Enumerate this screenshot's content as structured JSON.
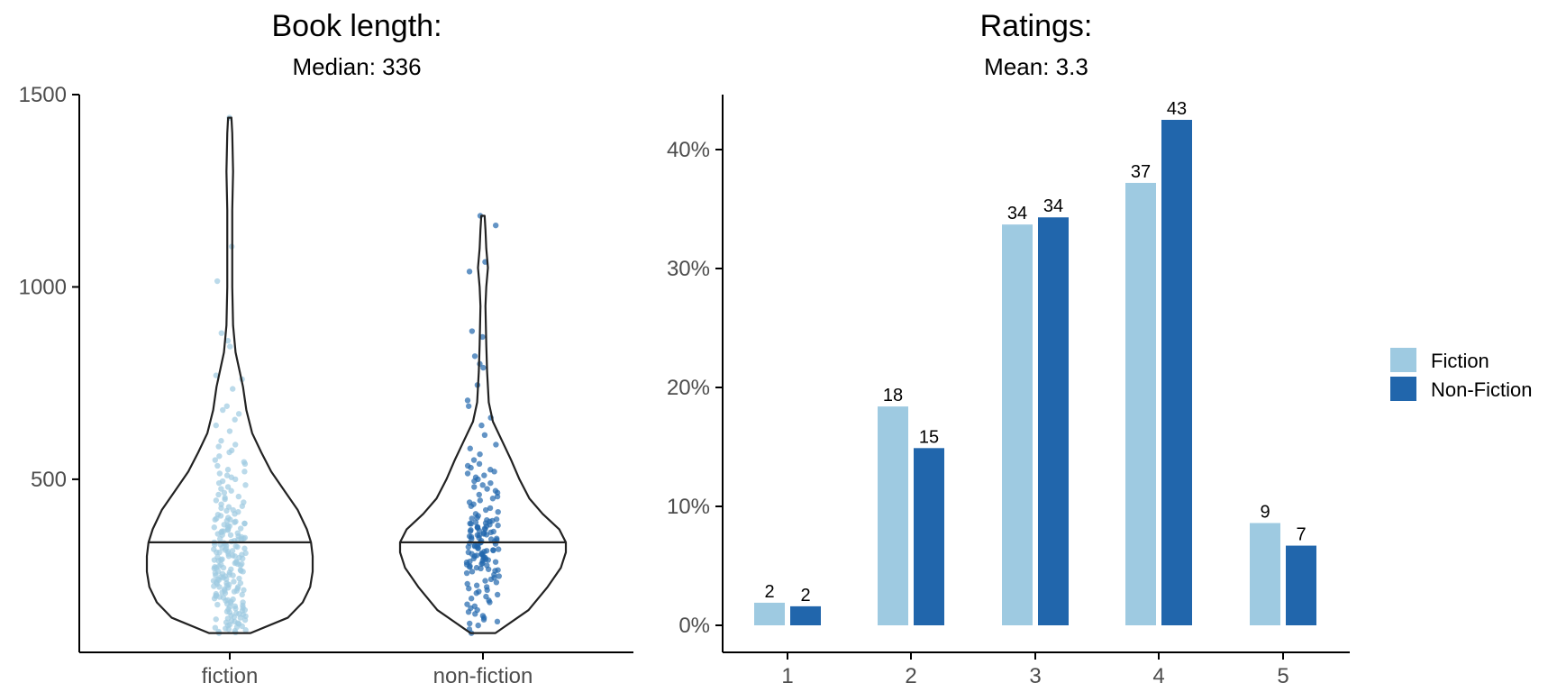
{
  "chart_data": [
    {
      "type": "violin",
      "title": "Book length:",
      "subtitle": "Median: 336",
      "categories": [
        "fiction",
        "non-fiction"
      ],
      "ylim": [
        50,
        1500
      ],
      "yticks": [
        "500",
        "1000",
        "1500"
      ],
      "ytick_values": [
        500,
        1000,
        1500
      ],
      "grid": false,
      "violins": [
        {
          "name": "fiction",
          "median": 336,
          "min": 100,
          "max": 1440,
          "color": "#9ecae1",
          "profile": [
            [
              100,
              0.25
            ],
            [
              140,
              0.7
            ],
            [
              180,
              0.88
            ],
            [
              220,
              0.97
            ],
            [
              260,
              1.0
            ],
            [
              300,
              1.0
            ],
            [
              336,
              0.98
            ],
            [
              370,
              0.93
            ],
            [
              420,
              0.82
            ],
            [
              470,
              0.66
            ],
            [
              520,
              0.5
            ],
            [
              570,
              0.38
            ],
            [
              620,
              0.27
            ],
            [
              680,
              0.2
            ],
            [
              740,
              0.16
            ],
            [
              780,
              0.12
            ],
            [
              830,
              0.07
            ],
            [
              900,
              0.04
            ],
            [
              1000,
              0.03
            ],
            [
              1100,
              0.03
            ],
            [
              1200,
              0.03
            ],
            [
              1300,
              0.04
            ],
            [
              1400,
              0.03
            ],
            [
              1440,
              0.02
            ]
          ]
        },
        {
          "name": "non-fiction",
          "median": 336,
          "min": 100,
          "max": 1185,
          "color": "#2166ac",
          "profile": [
            [
              100,
              0.15
            ],
            [
              160,
              0.55
            ],
            [
              220,
              0.78
            ],
            [
              270,
              0.94
            ],
            [
              310,
              1.0
            ],
            [
              336,
              1.0
            ],
            [
              370,
              0.92
            ],
            [
              410,
              0.72
            ],
            [
              450,
              0.56
            ],
            [
              500,
              0.44
            ],
            [
              550,
              0.34
            ],
            [
              600,
              0.23
            ],
            [
              650,
              0.12
            ],
            [
              700,
              0.07
            ],
            [
              780,
              0.05
            ],
            [
              850,
              0.04
            ],
            [
              950,
              0.03
            ],
            [
              1000,
              0.04
            ],
            [
              1050,
              0.06
            ],
            [
              1100,
              0.04
            ],
            [
              1150,
              0.03
            ],
            [
              1185,
              0.02
            ]
          ]
        }
      ],
      "points": {
        "fiction": [
          1440,
          1105,
          1015,
          880,
          860,
          845,
          770,
          760,
          735,
          690,
          680,
          670,
          655,
          640,
          625,
          600,
          590,
          585,
          575,
          570,
          560,
          550,
          545,
          540,
          535,
          525,
          520,
          515,
          510,
          505,
          500,
          495,
          490,
          485,
          480,
          475,
          470,
          465,
          460,
          455,
          452,
          448,
          445,
          440,
          435,
          430,
          428,
          425,
          420,
          418,
          415,
          410,
          408,
          405,
          400,
          398,
          395,
          392,
          390,
          388,
          385,
          382,
          380,
          378,
          375,
          372,
          370,
          368,
          365,
          362,
          360,
          358,
          355,
          352,
          350,
          348,
          346,
          344,
          342,
          340,
          338,
          336,
          334,
          332,
          330,
          328,
          326,
          324,
          322,
          320,
          318,
          316,
          314,
          312,
          310,
          308,
          306,
          304,
          302,
          300,
          298,
          296,
          294,
          292,
          290,
          288,
          286,
          284,
          282,
          280,
          278,
          276,
          274,
          272,
          270,
          268,
          266,
          264,
          262,
          260,
          258,
          256,
          254,
          252,
          250,
          248,
          246,
          244,
          242,
          240,
          238,
          236,
          234,
          232,
          230,
          228,
          226,
          224,
          222,
          220,
          218,
          216,
          214,
          212,
          210,
          208,
          206,
          204,
          202,
          200,
          198,
          196,
          194,
          192,
          190,
          188,
          186,
          184,
          182,
          180,
          178,
          176,
          174,
          172,
          170,
          168,
          166,
          164,
          162,
          160,
          158,
          156,
          154,
          152,
          150,
          148,
          146,
          144,
          142,
          140,
          138,
          136,
          134,
          132,
          130,
          128,
          126,
          124,
          122,
          120,
          118,
          116,
          114,
          112,
          110,
          108,
          106,
          104,
          102,
          100,
          345,
          355,
          365,
          375,
          385,
          395,
          330,
          320,
          310,
          300,
          290,
          280,
          270,
          260,
          250,
          240,
          230,
          220,
          210
        ],
        "non-fiction": [
          1185,
          1160,
          1065,
          1040,
          885,
          870,
          820,
          800,
          790,
          745,
          705,
          690,
          660,
          640,
          615,
          590,
          580,
          565,
          550,
          540,
          535,
          530,
          525,
          520,
          515,
          510,
          505,
          500,
          495,
          490,
          485,
          480,
          475,
          470,
          465,
          460,
          455,
          450,
          445,
          440,
          435,
          430,
          425,
          420,
          415,
          410,
          405,
          400,
          398,
          396,
          394,
          392,
          390,
          388,
          386,
          384,
          382,
          380,
          378,
          376,
          374,
          372,
          370,
          368,
          366,
          364,
          362,
          360,
          358,
          356,
          354,
          352,
          350,
          348,
          346,
          344,
          342,
          340,
          338,
          336,
          334,
          332,
          330,
          328,
          326,
          324,
          322,
          320,
          318,
          316,
          314,
          312,
          310,
          308,
          306,
          304,
          302,
          300,
          298,
          296,
          294,
          292,
          290,
          288,
          286,
          284,
          282,
          280,
          278,
          276,
          274,
          272,
          270,
          268,
          266,
          264,
          262,
          260,
          256,
          252,
          248,
          244,
          240,
          236,
          232,
          228,
          224,
          220,
          216,
          212,
          208,
          204,
          200,
          195,
          190,
          185,
          180,
          175,
          170,
          165,
          160,
          155,
          150,
          145,
          140,
          135,
          130,
          125,
          120,
          110,
          100,
          345,
          355,
          365,
          375,
          385,
          335,
          325,
          315,
          305,
          295,
          285
        ]
      }
    },
    {
      "type": "bar",
      "title": "Ratings:",
      "subtitle": "Mean: 3.3",
      "categories": [
        "1",
        "2",
        "3",
        "4",
        "5"
      ],
      "ylim": [
        -0.0,
        0.44
      ],
      "yticks": [
        "0%",
        "10%",
        "20%",
        "30%",
        "40%"
      ],
      "ytick_values": [
        0,
        0.1,
        0.2,
        0.3,
        0.4
      ],
      "grid": false,
      "legend_position": "right",
      "series": [
        {
          "name": "Fiction",
          "color": "#9ecae1",
          "values": [
            0.019,
            0.184,
            0.337,
            0.372,
            0.086
          ],
          "labels": [
            "2",
            "18",
            "34",
            "37",
            "9"
          ]
        },
        {
          "name": "Non-Fiction",
          "color": "#2166ac",
          "values": [
            0.016,
            0.149,
            0.343,
            0.425,
            0.067
          ],
          "labels": [
            "2",
            "15",
            "34",
            "43",
            "7"
          ]
        }
      ]
    }
  ]
}
